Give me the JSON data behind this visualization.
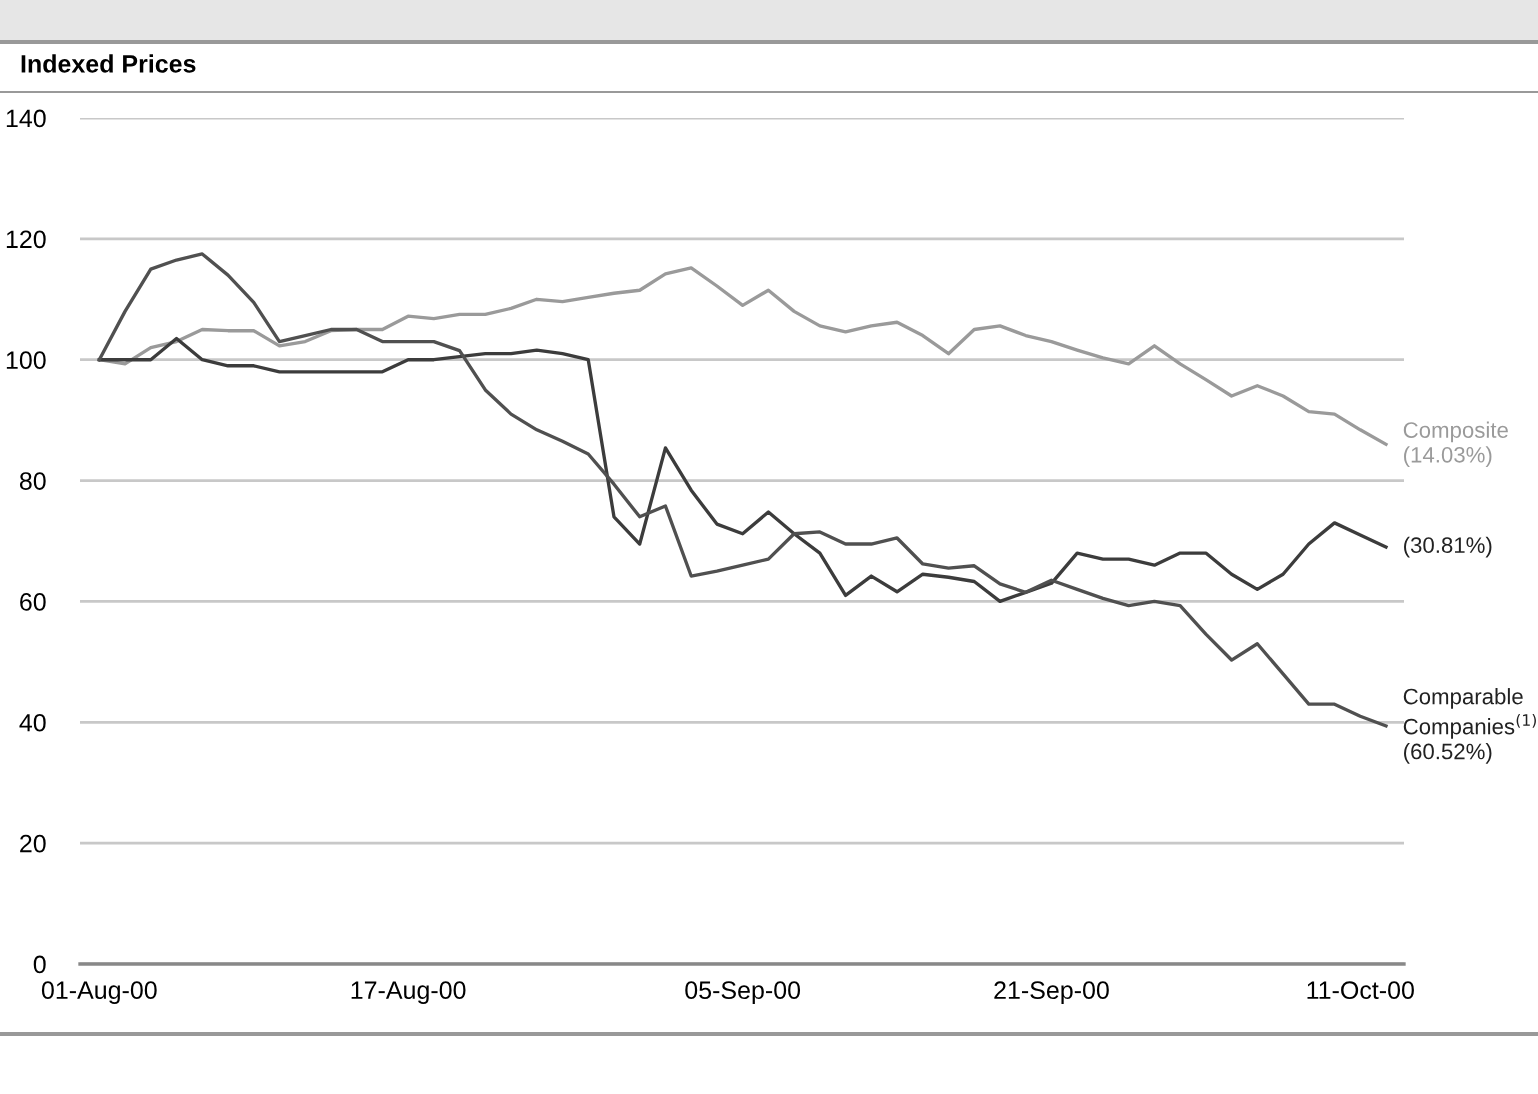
{
  "chart_data": {
    "type": "line",
    "title": "Indexed Prices",
    "categories": [
      "01-Aug-00",
      null,
      null,
      null,
      null,
      null,
      null,
      null,
      null,
      null,
      null,
      null,
      "17-Aug-00",
      null,
      null,
      null,
      null,
      null,
      null,
      null,
      null,
      null,
      null,
      null,
      null,
      "05-Sep-00",
      null,
      null,
      null,
      null,
      null,
      null,
      null,
      null,
      null,
      null,
      null,
      "21-Sep-00",
      null,
      null,
      null,
      null,
      null,
      null,
      null,
      null,
      null,
      null,
      null,
      "11-Oct-00",
      null
    ],
    "series": [
      {
        "name": "Composite\n(14.03%)",
        "color": "#9a9a9a",
        "values": [
          100,
          99.3,
          102,
          103,
          105,
          104.8,
          104.8,
          102.3,
          103,
          104.8,
          105,
          105,
          107.2,
          106.8,
          107.5,
          107.5,
          108.5,
          110,
          109.6,
          110.3,
          111,
          111.5,
          114.2,
          115.2,
          112.2,
          109,
          111.5,
          108,
          105.6,
          104.6,
          105.6,
          106.2,
          104,
          101,
          105,
          105.6,
          104,
          103,
          101.6,
          100.3,
          99.3,
          102.3,
          99.3,
          96.7,
          94,
          95.7,
          94,
          91.4,
          91,
          88.4,
          86
        ]
      },
      {
        "name": "(30.81%)",
        "color": "#3c3c3c",
        "values": [
          100,
          100,
          100,
          103.5,
          100,
          99,
          99,
          98,
          98,
          98,
          98,
          98,
          100,
          100,
          100.5,
          101,
          101,
          101.6,
          101,
          100,
          74,
          69.5,
          85.4,
          78.4,
          72.8,
          71.2,
          74.8,
          71.2,
          68,
          61,
          64.2,
          61.6,
          64.5,
          64,
          63.3,
          60,
          61.5,
          63,
          68,
          67,
          67,
          66,
          68,
          68,
          64.5,
          62,
          64.5,
          69.5,
          73,
          71,
          69
        ]
      },
      {
        "name": "Comparable\nCompanies$^{(1)}$\n(60.52%)",
        "color": "#505050",
        "values": [
          100,
          108,
          115,
          116.5,
          117.5,
          114,
          109.5,
          103,
          104,
          105,
          105,
          103,
          103,
          103,
          101.5,
          95,
          91,
          88.4,
          86.5,
          84.4,
          79.4,
          74,
          75.8,
          64.2,
          65,
          66,
          67,
          71.2,
          71.5,
          69.5,
          69.5,
          70.5,
          66.2,
          65.5,
          65.9,
          62.9,
          61.5,
          63.5,
          62,
          60.5,
          59.3,
          60,
          59.3,
          54.6,
          50.3,
          53,
          48,
          43,
          43,
          41,
          39.4
        ]
      }
    ],
    "ylim": [
      0,
      140
    ],
    "yticks": [
      0,
      20,
      40,
      60,
      80,
      100,
      120,
      140
    ],
    "grid": "y",
    "legend": false,
    "marker": "none",
    "line_style": "solid"
  }
}
